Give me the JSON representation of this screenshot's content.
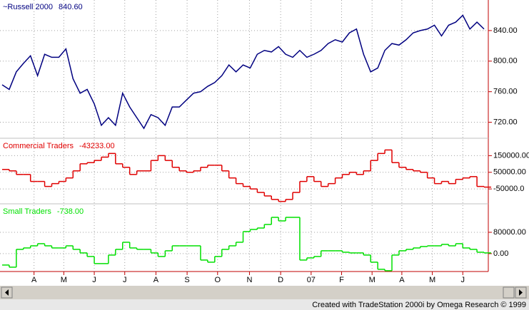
{
  "x_axis": {
    "x": [
      0,
      1,
      2,
      3,
      4,
      5,
      6,
      7,
      8,
      9,
      10,
      11,
      12,
      13,
      14,
      15,
      16,
      17,
      18,
      19,
      20,
      21,
      22,
      23,
      24,
      25,
      26,
      27,
      28,
      29,
      30,
      31,
      32,
      33,
      34,
      35,
      36,
      37,
      38,
      39,
      40,
      41,
      42,
      43,
      44,
      45,
      46,
      47,
      48,
      49,
      50,
      51,
      52,
      53,
      54,
      55,
      56,
      57,
      58,
      59,
      60,
      61,
      62,
      63,
      64,
      65,
      66,
      67,
      68
    ],
    "xlim": [
      0,
      68.5
    ],
    "xticks": [
      {
        "value": 4.5,
        "label": "A"
      },
      {
        "value": 8.7,
        "label": "M"
      },
      {
        "value": 13,
        "label": "J"
      },
      {
        "value": 17.3,
        "label": "J"
      },
      {
        "value": 21.7,
        "label": "A"
      },
      {
        "value": 26.1,
        "label": "S"
      },
      {
        "value": 30.4,
        "label": "O"
      },
      {
        "value": 34.9,
        "label": "N"
      },
      {
        "value": 39.3,
        "label": "D"
      },
      {
        "value": 43.6,
        "label": "07"
      },
      {
        "value": 47.9,
        "label": "F"
      },
      {
        "value": 52.2,
        "label": "M"
      },
      {
        "value": 56.4,
        "label": "A"
      },
      {
        "value": 60.7,
        "label": "M"
      },
      {
        "value": 65,
        "label": "J"
      }
    ],
    "grid": true
  },
  "chart_data": [
    {
      "type": "line",
      "title": "~Russell 2000",
      "last_value": "840.60",
      "color": "#000080",
      "values": [
        769,
        763,
        786,
        797,
        807,
        781,
        809,
        805,
        805,
        816,
        777,
        758,
        763,
        744,
        716,
        726,
        716,
        758,
        740,
        726,
        712,
        730,
        726,
        716,
        740,
        740,
        749,
        758,
        760,
        767,
        772,
        781,
        795,
        786,
        795,
        791,
        809,
        814,
        812,
        819,
        809,
        805,
        814,
        805,
        809,
        814,
        823,
        828,
        825,
        837,
        842,
        809,
        786,
        791,
        814,
        823,
        821,
        828,
        837,
        840,
        842,
        847,
        833,
        847,
        851,
        860,
        842,
        851,
        842
      ],
      "ylim": [
        700,
        880
      ],
      "yticks": [
        {
          "value": 720,
          "label": "720.00"
        },
        {
          "value": 760,
          "label": "760.00"
        },
        {
          "value": 800,
          "label": "800.00"
        },
        {
          "value": 840,
          "label": "840.00"
        }
      ]
    },
    {
      "type": "step",
      "title": "Commercial Traders",
      "last_value": "-43233.00",
      "color": "#e00000",
      "values": [
        67000,
        58500,
        37000,
        37000,
        -5000,
        -5000,
        -35000,
        -18000,
        -5000,
        16000,
        58500,
        101000,
        108000,
        121000,
        141000,
        163000,
        101000,
        80000,
        37000,
        58500,
        58500,
        121000,
        150000,
        121000,
        80000,
        58500,
        50000,
        58500,
        80000,
        92500,
        92500,
        58500,
        16000,
        -18000,
        -35000,
        -50000,
        -71000,
        -92000,
        -113000,
        -125000,
        -113000,
        -71000,
        -5000,
        24000,
        -5000,
        -35000,
        -18000,
        16000,
        37000,
        50000,
        37000,
        58500,
        121000,
        163000,
        184000,
        108000,
        80000,
        67000,
        58500,
        50000,
        16000,
        -18000,
        -5000,
        -18000,
        7500,
        16000,
        24000,
        -35000,
        -39000
      ],
      "ylim": [
        -135000,
        250000
      ],
      "yticks": [
        {
          "value": -50000,
          "label": "-50000.0"
        },
        {
          "value": 50000,
          "label": "50000.00"
        },
        {
          "value": 150000,
          "label": "150000.00"
        }
      ]
    },
    {
      "type": "step",
      "title": "Small Traders",
      "last_value": "-738.00",
      "color": "#00e000",
      "values": [
        -42700,
        -50700,
        16000,
        21300,
        29300,
        37300,
        29300,
        21300,
        21300,
        29300,
        16000,
        2700,
        -10700,
        -37300,
        -37300,
        -5300,
        16000,
        42700,
        21300,
        16000,
        16000,
        2700,
        -10700,
        10700,
        29300,
        29300,
        29300,
        29300,
        -24000,
        -32000,
        -10700,
        16000,
        29300,
        42700,
        82700,
        90700,
        96000,
        109300,
        136000,
        122700,
        136000,
        136000,
        -24000,
        -16000,
        -10700,
        10700,
        10700,
        10700,
        5300,
        2700,
        2700,
        -5300,
        -32000,
        -58700,
        -64000,
        -5300,
        10700,
        16000,
        21300,
        26700,
        29300,
        29300,
        34700,
        29300,
        37300,
        21300,
        16000,
        5300,
        2700
      ],
      "ylim": [
        -67000,
        184000
      ],
      "yticks": [
        {
          "value": 0,
          "label": "0.00"
        },
        {
          "value": 80000,
          "label": "80000.00"
        }
      ]
    }
  ],
  "footer": "Created with TradeStation 2000i by Omega Research © 1999"
}
